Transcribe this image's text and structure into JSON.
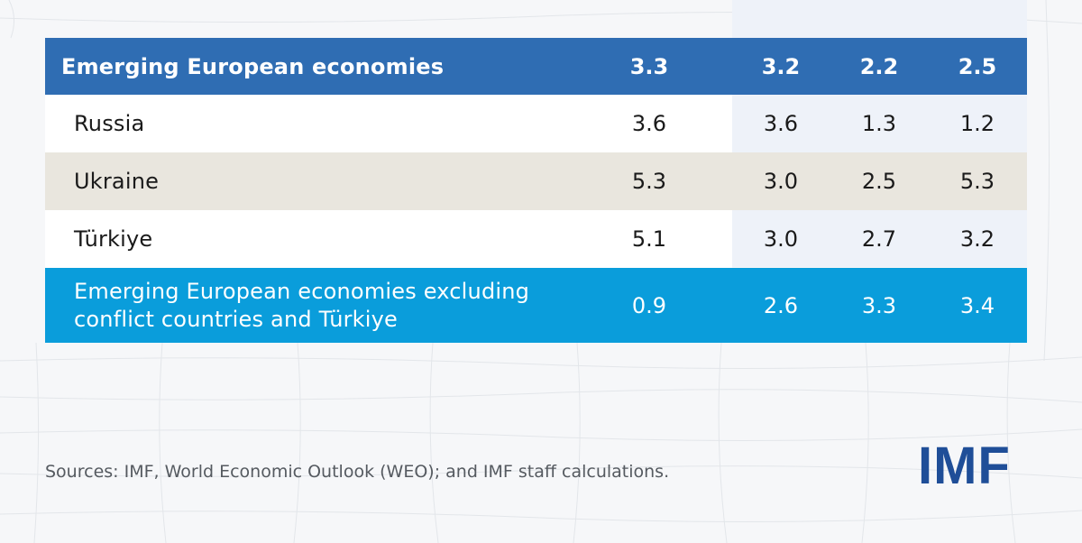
{
  "chart_data": {
    "type": "table",
    "rows": [
      {
        "label": "Emerging European economies",
        "values": [
          "3.3",
          "3.2",
          "2.2",
          "2.5"
        ]
      },
      {
        "label": "Russia",
        "values": [
          "3.6",
          "3.6",
          "1.3",
          "1.2"
        ]
      },
      {
        "label": "Ukraine",
        "values": [
          "5.3",
          "3.0",
          "2.5",
          "5.3"
        ]
      },
      {
        "label": "Türkiye",
        "values": [
          "5.1",
          "3.0",
          "2.7",
          "3.2"
        ]
      },
      {
        "label": "Emerging European economies excluding conflict countries and Türkiye",
        "values": [
          "0.9",
          "2.6",
          "3.3",
          "3.4"
        ]
      }
    ]
  },
  "footer": {
    "source": "Sources: IMF, World Economic Outlook (WEO); and IMF staff calculations.",
    "logo": "IMF"
  },
  "colors": {
    "header_blue": "#2f6db3",
    "highlight_blue": "#0a9ddb",
    "tan_row": "#e9e6de",
    "projection_shade": "#eef2f9",
    "logo_blue": "#1f4e98"
  }
}
